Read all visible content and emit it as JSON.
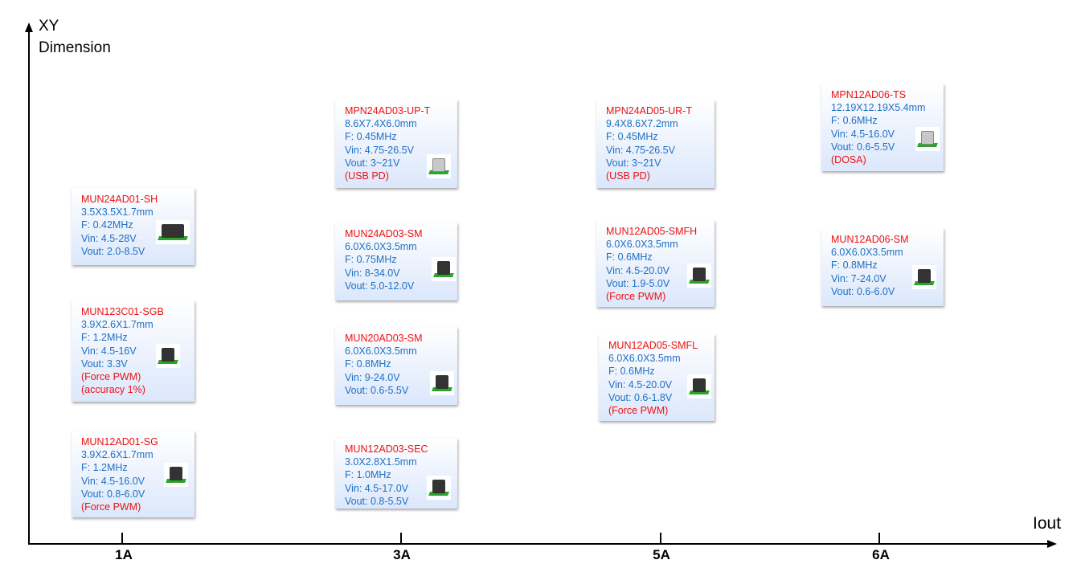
{
  "axes": {
    "y_label_line1": "XY",
    "y_label_line2": "Dimension",
    "x_label": "Iout",
    "ticks": [
      "1A",
      "3A",
      "5A",
      "6A"
    ]
  },
  "cards": [
    {
      "name": "MUN24AD01-SH",
      "lines": [
        "3.5X3.5X1.7mm",
        "F: 0.42MHz",
        "Vin: 4.5-28V",
        "Vout: 2.0-8.5V"
      ],
      "notes": [],
      "icon": "smd-inductor-module-icon"
    },
    {
      "name": "MUN123C01-SGB",
      "lines": [
        "3.9X2.6X1.7mm",
        "F: 1.2MHz",
        "Vin: 4.5-16V",
        "Vout: 3.3V"
      ],
      "notes": [
        "(Force PWM)",
        "(accuracy 1%)"
      ],
      "icon": "chip-module-icon"
    },
    {
      "name": "MUN12AD01-SG",
      "lines": [
        "3.9X2.6X1.7mm",
        "F: 1.2MHz",
        "Vin: 4.5-16.0V",
        "Vout: 0.8-6.0V"
      ],
      "notes": [
        "(Force PWM)"
      ],
      "icon": "chip-module-icon"
    },
    {
      "name": "MPN24AD03-UP-T",
      "lines": [
        "8.6X7.4X6.0mm",
        "F: 0.45MHz",
        "Vin: 4.75-26.5V",
        "Vout: 3~21V"
      ],
      "notes": [
        "(USB PD)"
      ],
      "icon": "gray-module-icon"
    },
    {
      "name": "MUN24AD03-SM",
      "lines": [
        "6.0X6.0X3.5mm",
        "F: 0.75MHz",
        "Vin: 8-34.0V",
        "Vout: 5.0-12.0V"
      ],
      "notes": [],
      "icon": "chip-module-icon"
    },
    {
      "name": "MUN20AD03-SM",
      "lines": [
        "6.0X6.0X3.5mm",
        "F: 0.8MHz",
        "Vin: 9-24.0V",
        "Vout: 0.6-5.5V"
      ],
      "notes": [],
      "icon": "chip-module-icon"
    },
    {
      "name": "MUN12AD03-SEC",
      "lines": [
        "3.0X2.8X1.5mm",
        "F: 1.0MHz",
        "Vin: 4.5-17.0V",
        "Vout: 0.8-5.5V"
      ],
      "notes": [],
      "icon": "chip-module-icon"
    },
    {
      "name": "MPN24AD05-UR-T",
      "lines": [
        "9.4X8.6X7.2mm",
        "F: 0.45MHz",
        "Vin: 4.75-26.5V",
        "Vout: 3~21V"
      ],
      "notes": [
        "(USB PD)"
      ],
      "icon": ""
    },
    {
      "name": "MUN12AD05-SMFH",
      "lines": [
        "6.0X6.0X3.5mm",
        "F: 0.6MHz",
        "Vin: 4.5-20.0V",
        "Vout: 1.9-5.0V"
      ],
      "notes": [
        "(Force PWM)"
      ],
      "icon": "chip-module-icon"
    },
    {
      "name": "MUN12AD05-SMFL",
      "lines": [
        "6.0X6.0X3.5mm",
        "F: 0.6MHz",
        "Vin: 4.5-20.0V",
        "Vout: 0.6-1.8V"
      ],
      "notes": [
        "(Force PWM)"
      ],
      "icon": "chip-module-icon"
    },
    {
      "name": "MPN12AD06-TS",
      "lines": [
        "12.19X12.19X5.4mm",
        "F: 0.6MHz",
        "Vin: 4.5-16.0V",
        "Vout: 0.6-5.5V"
      ],
      "notes": [
        "(DOSA)"
      ],
      "icon": "gray-module-icon"
    },
    {
      "name": "MUN12AD06-SM",
      "lines": [
        "6.0X6.0X3.5mm",
        "F: 0.8MHz",
        "Vin: 7-24.0V",
        "Vout: 0.6-6.0V"
      ],
      "notes": [],
      "icon": "chip-module-icon"
    }
  ]
}
